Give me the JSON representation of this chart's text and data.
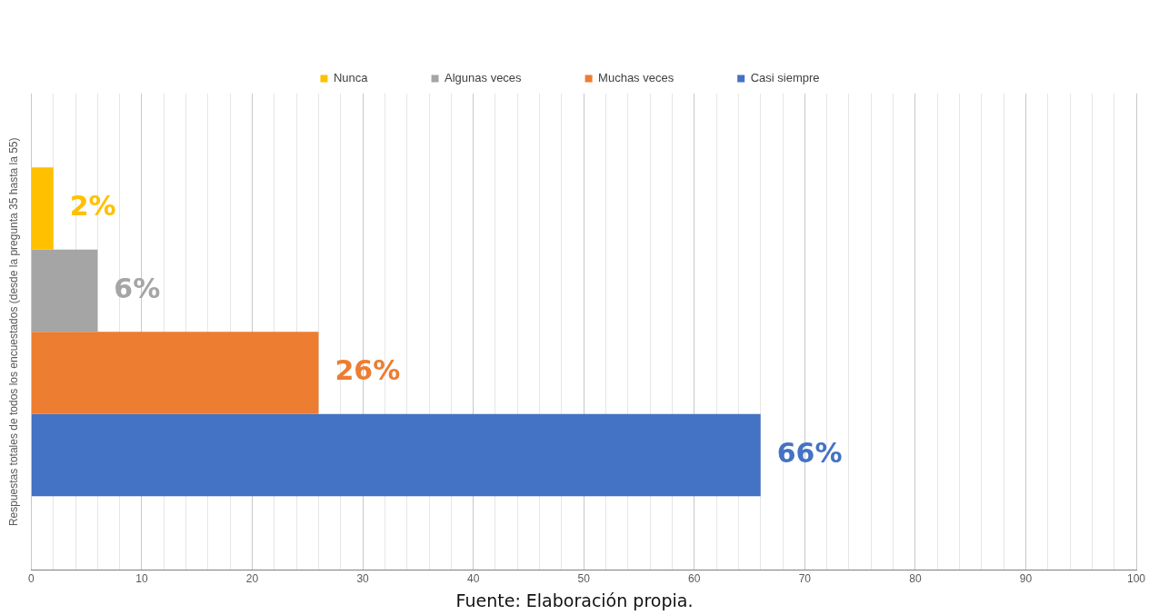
{
  "chart_data": {
    "type": "bar",
    "orientation": "horizontal",
    "categories": [
      null
    ],
    "series": [
      {
        "name": "Nunca",
        "color": "#ffc000",
        "values": [
          2
        ],
        "value_labels": [
          "2%"
        ]
      },
      {
        "name": "Algunas veces",
        "color": "#a5a5a5",
        "values": [
          6
        ],
        "value_labels": [
          "6%"
        ]
      },
      {
        "name": "Muchas veces",
        "color": "#ed7d31",
        "values": [
          26
        ],
        "value_labels": [
          "26%"
        ]
      },
      {
        "name": "Casi siempre",
        "color": "#4472c4",
        "values": [
          66
        ],
        "value_labels": [
          "66%"
        ]
      }
    ],
    "ylabel": "Respuestas totales de todos los encuestados (desde la pregunta 35 hasta la 55)",
    "xlim": [
      0,
      100
    ],
    "xticks": [
      0,
      {
        "value": 2,
        "label": null
      },
      {
        "value": 4,
        "label": null
      },
      {
        "value": 6,
        "label": null
      },
      {
        "value": 8,
        "label": null
      },
      10,
      {
        "value": 12,
        "label": null
      },
      {
        "value": 14,
        "label": null
      },
      {
        "value": 16,
        "label": null
      },
      {
        "value": 18,
        "label": null
      },
      20,
      {
        "value": 22,
        "label": null
      },
      {
        "value": 24,
        "label": null
      },
      {
        "value": 26,
        "label": null
      },
      {
        "value": 28,
        "label": null
      },
      30,
      {
        "value": 32,
        "label": null
      },
      {
        "value": 34,
        "label": null
      },
      {
        "value": 36,
        "label": null
      },
      {
        "value": 38,
        "label": null
      },
      40,
      {
        "value": 42,
        "label": null
      },
      {
        "value": 44,
        "label": null
      },
      {
        "value": 46,
        "label": null
      },
      {
        "value": 48,
        "label": null
      },
      50,
      {
        "value": 52,
        "label": null
      },
      {
        "value": 54,
        "label": null
      },
      {
        "value": 56,
        "label": null
      },
      {
        "value": 58,
        "label": null
      },
      60,
      {
        "value": 62,
        "label": null
      },
      {
        "value": 64,
        "label": null
      },
      {
        "value": 66,
        "label": null
      },
      {
        "value": 68,
        "label": null
      },
      70,
      {
        "value": 72,
        "label": null
      },
      {
        "value": 74,
        "label": null
      },
      {
        "value": 76,
        "label": null
      },
      {
        "value": 78,
        "label": null
      },
      80,
      {
        "value": 82,
        "label": null
      },
      {
        "value": 84,
        "label": null
      },
      {
        "value": 86,
        "label": null
      },
      {
        "value": 88,
        "label": null
      },
      90,
      {
        "value": 92,
        "label": null
      },
      {
        "value": 94,
        "label": null
      },
      {
        "value": 96,
        "label": null
      },
      {
        "value": 98,
        "label": null
      },
      100
    ],
    "grid": "x",
    "legend": "top",
    "annotations": [
      "Fuente: Elaboración propia."
    ]
  }
}
